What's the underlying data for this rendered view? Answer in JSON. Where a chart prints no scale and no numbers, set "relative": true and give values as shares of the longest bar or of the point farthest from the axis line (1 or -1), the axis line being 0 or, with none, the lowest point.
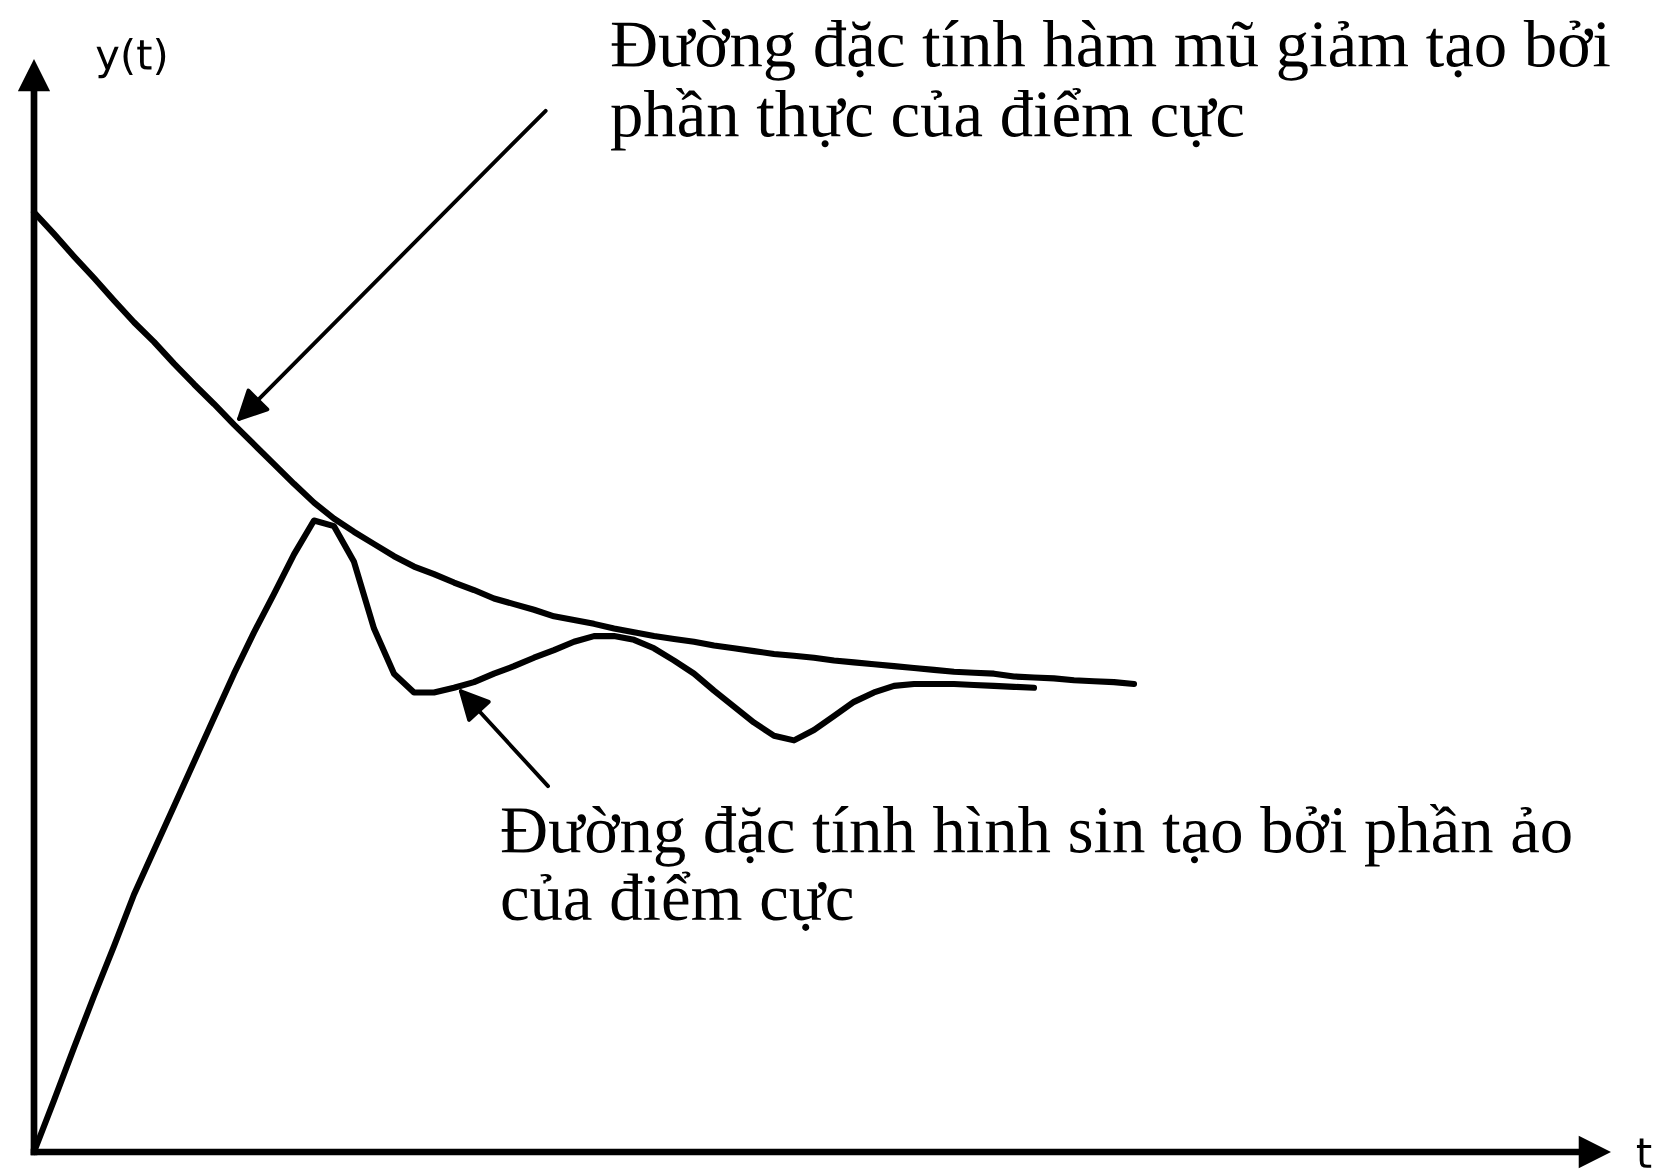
{
  "chart_data": {
    "type": "line",
    "relative": true,
    "xlabel": "t",
    "ylabel": "y(t)",
    "categories": [
      null,
      null,
      null,
      null,
      null,
      null,
      null,
      null,
      null,
      null,
      null,
      null,
      null,
      null,
      null,
      null,
      null,
      null,
      null,
      null,
      null,
      null,
      null,
      null,
      null,
      null,
      null,
      null,
      null,
      null,
      null,
      null,
      null,
      null,
      null,
      null,
      null,
      null,
      null,
      null,
      null,
      null,
      null,
      null,
      null,
      null,
      null,
      null,
      null,
      null,
      null,
      null,
      null,
      null,
      null,
      null,
      null,
      null,
      null,
      null,
      null,
      null,
      null,
      null,
      null,
      null,
      null,
      null,
      null,
      null,
      null,
      null,
      null,
      null,
      null,
      null,
      null,
      null,
      null
    ],
    "series": [
      {
        "color": "#000000",
        "values": [
          1,
          0.977,
          0.953,
          0.93,
          0.906,
          0.883,
          0.862,
          0.839,
          0.817,
          0.796,
          0.774,
          0.753,
          0.732,
          0.711,
          0.691,
          0.674,
          0.66,
          0.647,
          0.634,
          0.623,
          0.615,
          0.606,
          0.598,
          0.589,
          0.583,
          0.577,
          0.57,
          0.566,
          0.562,
          0.557,
          0.553,
          0.549,
          0.546,
          0.543,
          0.539,
          0.536,
          0.533,
          0.53,
          0.528,
          0.526,
          0.523,
          0.521,
          0.519,
          0.517,
          0.515,
          0.513,
          0.511,
          0.51,
          0.509,
          0.506,
          0.505,
          0.504,
          0.502,
          0.501,
          0.5,
          0.498,
          null,
          null,
          null,
          null,
          null,
          null,
          null,
          null,
          null,
          null,
          null,
          null,
          null,
          null,
          null,
          null,
          null,
          null,
          null,
          null,
          null,
          null,
          null
        ]
      },
      {
        "color": "#000000",
        "values": [
          0,
          0.055,
          0.111,
          0.166,
          0.219,
          0.274,
          0.321,
          0.368,
          0.415,
          0.462,
          0.509,
          0.553,
          0.594,
          0.636,
          0.672,
          0.666,
          0.628,
          0.557,
          0.509,
          0.489,
          0.489,
          0.494,
          0.5,
          0.509,
          0.517,
          0.526,
          0.534,
          0.543,
          0.549,
          0.549,
          0.545,
          0.536,
          0.523,
          0.509,
          0.491,
          0.474,
          0.457,
          0.443,
          0.438,
          0.449,
          0.464,
          0.479,
          0.489,
          0.496,
          0.498,
          0.498,
          0.498,
          0.497,
          0.496,
          0.495,
          0.494,
          null,
          null,
          null,
          null,
          null,
          null,
          null,
          null,
          null,
          null,
          null,
          null,
          null,
          null,
          null,
          null,
          null,
          null,
          null,
          null,
          null,
          null,
          null,
          null,
          null,
          null,
          null,
          null
        ]
      }
    ],
    "annotations": [
      "Đường đặc tính hàm mũ giảm tạo bởi\nphần thực của điểm cực",
      "Đường đặc tính hình sin tạo bởi phần ảo\ncủa điểm cực"
    ]
  }
}
